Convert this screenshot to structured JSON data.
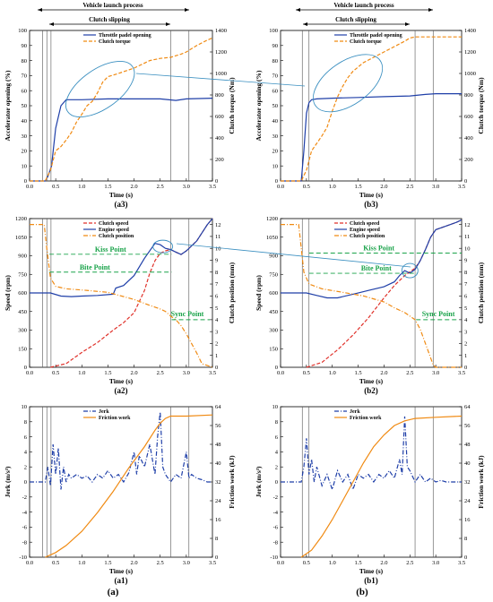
{
  "figure": {
    "panels_left_caption": "(a)",
    "panels_right_caption": "(b)",
    "annotation_launch": "Vehicle launch process",
    "annotation_slip": "Clutch slipping",
    "colors": {
      "blue": "#1f3fa8",
      "orange": "#f08a12",
      "red": "#e0312a",
      "green": "#1aa34a",
      "teal": "#3a8fc0"
    }
  },
  "chart_data": [
    {
      "id": "a3",
      "type": "line",
      "subtitle": "(a3)",
      "xlabel": "Time (s)",
      "ylabel": "Accelerator opening (%)",
      "y2label": "Clutch torque (Nm)",
      "xlim": [
        0,
        3.5
      ],
      "ylim": [
        0,
        100
      ],
      "y2lim": [
        0,
        1400
      ],
      "xticks": [
        "0.0",
        "0.5",
        "1.0",
        "1.5",
        "2.0",
        "2.5",
        "3.0",
        "3.5"
      ],
      "yticks": [
        "0",
        "10",
        "20",
        "30",
        "40",
        "50",
        "60",
        "70",
        "80",
        "90",
        "100"
      ],
      "y2ticks": [
        "0",
        "200",
        "400",
        "600",
        "800",
        "1000",
        "1200",
        "1400"
      ],
      "series": [
        {
          "name": "Throttle padel opening",
          "axis": "y",
          "style": "solid",
          "color": "#1f3fa8",
          "x": [
            0,
            0.3,
            0.35,
            0.42,
            0.5,
            0.6,
            0.7,
            1.0,
            1.5,
            2.0,
            2.5,
            2.8,
            3.0,
            3.5
          ],
          "y": [
            0,
            0,
            3,
            10,
            35,
            50,
            54,
            54,
            54.5,
            54.5,
            54.5,
            53.5,
            54.5,
            55
          ]
        },
        {
          "name": "Clutch torque",
          "axis": "y2",
          "style": "dash",
          "color": "#f08a12",
          "x": [
            0,
            0.3,
            0.4,
            0.5,
            0.6,
            0.7,
            0.8,
            0.9,
            1.0,
            1.1,
            1.2,
            1.3,
            1.4,
            1.5,
            1.7,
            2.0,
            2.3,
            2.5,
            2.7,
            2.9,
            3.0,
            3.2,
            3.4,
            3.5
          ],
          "y": [
            0,
            0,
            100,
            280,
            320,
            380,
            450,
            550,
            620,
            700,
            740,
            820,
            920,
            970,
            1000,
            1050,
            1120,
            1140,
            1150,
            1180,
            1200,
            1260,
            1310,
            1330
          ]
        }
      ]
    },
    {
      "id": "a2",
      "type": "line",
      "subtitle": "(a2)",
      "xlabel": "Time (s)",
      "ylabel": "Speed (rpm)",
      "y2label": "Clutch position (mm)",
      "xlim": [
        0,
        3.5
      ],
      "ylim": [
        0,
        1200
      ],
      "y2lim": [
        0,
        12.5
      ],
      "xticks": [
        "0.0",
        "0.5",
        "1.0",
        "1.5",
        "2.0",
        "2.5",
        "3.0",
        "3.5"
      ],
      "yticks": [
        "0",
        "150",
        "300",
        "450",
        "600",
        "750",
        "900",
        "1050",
        "1200"
      ],
      "y2ticks": [
        "0",
        "1",
        "2",
        "3",
        "4",
        "5",
        "6",
        "7",
        "8",
        "9",
        "10",
        "11",
        "12"
      ],
      "annotations": [
        "Kiss Point",
        "Bite Point",
        "Sync Point"
      ],
      "series": [
        {
          "name": "Clutch speed",
          "axis": "y",
          "style": "dash",
          "color": "#e0312a",
          "x": [
            0.4,
            0.7,
            1.0,
            1.3,
            1.6,
            1.8,
            2.0,
            2.2,
            2.3,
            2.4,
            2.5,
            2.6,
            2.7,
            2.8,
            2.9,
            3.0,
            3.2,
            3.4,
            3.5
          ],
          "y": [
            0,
            30,
            120,
            200,
            300,
            360,
            440,
            620,
            760,
            860,
            920,
            940,
            950,
            930,
            910,
            940,
            1020,
            1150,
            1200
          ]
        },
        {
          "name": "Engine speed",
          "axis": "y",
          "style": "solid",
          "color": "#1f3fa8",
          "x": [
            0,
            0.4,
            0.6,
            0.8,
            1.0,
            1.3,
            1.6,
            1.65,
            1.8,
            2.0,
            2.2,
            2.4,
            2.5,
            2.6,
            2.7,
            2.8,
            2.9,
            3.0,
            3.2,
            3.4,
            3.5
          ],
          "y": [
            600,
            600,
            575,
            570,
            575,
            580,
            590,
            640,
            660,
            740,
            880,
            1000,
            990,
            960,
            950,
            930,
            910,
            940,
            1020,
            1150,
            1200
          ]
        },
        {
          "name": "Clutch position",
          "axis": "y2",
          "style": "dashdot",
          "color": "#f08a12",
          "x": [
            0,
            0.28,
            0.33,
            0.4,
            0.5,
            0.7,
            1.0,
            1.5,
            2.0,
            2.3,
            2.5,
            2.6,
            2.7,
            2.8,
            2.9,
            3.0,
            3.1,
            3.2,
            3.3,
            3.5
          ],
          "y": [
            12,
            12,
            10,
            7.5,
            6.8,
            6.6,
            6.5,
            6.3,
            5.7,
            5.2,
            4.9,
            4.7,
            4.3,
            4.0,
            3.5,
            2.8,
            2.0,
            1.2,
            0.3,
            0
          ]
        }
      ]
    },
    {
      "id": "a1",
      "type": "line",
      "subtitle": "(a1)",
      "xlabel": "Time (s)",
      "ylabel": "Jerk (m/s³)",
      "y2label": "Friction work (kJ)",
      "xlim": [
        0,
        3.5
      ],
      "ylim": [
        -10,
        10
      ],
      "y2lim": [
        0,
        64
      ],
      "xticks": [
        "0.0",
        "0.5",
        "1.0",
        "1.5",
        "2.0",
        "2.5",
        "3.0",
        "3.5"
      ],
      "yticks": [
        "-10",
        "-8",
        "-6",
        "-4",
        "-2",
        "0",
        "2",
        "4",
        "6",
        "8",
        "10"
      ],
      "y2ticks": [
        "0",
        "8",
        "16",
        "24",
        "32",
        "40",
        "48",
        "56",
        "64"
      ],
      "series": [
        {
          "name": "Jerk",
          "axis": "y",
          "style": "dashdot",
          "color": "#1f3fa8",
          "x": [
            0,
            0.3,
            0.35,
            0.4,
            0.45,
            0.5,
            0.55,
            0.6,
            0.65,
            0.7,
            0.75,
            0.8,
            0.9,
            1.0,
            1.1,
            1.2,
            1.3,
            1.4,
            1.5,
            1.6,
            1.7,
            1.8,
            1.9,
            2.0,
            2.05,
            2.1,
            2.2,
            2.3,
            2.4,
            2.45,
            2.5,
            2.55,
            2.6,
            2.7,
            2.8,
            2.9,
            3.0,
            3.05,
            3.1,
            3.2,
            3.3,
            3.4,
            3.5
          ],
          "y": [
            0,
            0,
            2,
            -0.5,
            5,
            1,
            4.5,
            -1,
            2,
            0,
            1,
            0.5,
            1,
            0.5,
            0.8,
            0,
            1,
            0.5,
            1.5,
            0.5,
            1,
            0,
            1.2,
            4,
            1,
            3.5,
            2,
            5,
            1,
            6,
            9.3,
            2,
            1,
            0,
            1,
            0.5,
            4,
            0.5,
            1,
            0.5,
            0.3,
            0,
            0
          ]
        },
        {
          "name": "Friction work",
          "axis": "y2",
          "style": "solid",
          "color": "#f08a12",
          "x": [
            0.3,
            0.5,
            0.7,
            1.0,
            1.3,
            1.6,
            1.9,
            2.2,
            2.4,
            2.5,
            2.6,
            2.7,
            3.0,
            3.5
          ],
          "y": [
            0,
            2,
            5,
            11,
            19,
            28,
            38,
            47,
            54,
            57,
            59,
            60,
            60,
            60.5
          ]
        }
      ]
    },
    {
      "id": "b3",
      "type": "line",
      "subtitle": "(b3)",
      "xlabel": "Time (s)",
      "ylabel": "Accelerator opening (%)",
      "y2label": "Clutch torque (Nm)",
      "xlim": [
        0,
        3.5
      ],
      "ylim": [
        0,
        100
      ],
      "y2lim": [
        0,
        1400
      ],
      "xticks": [
        "0.0",
        "0.5",
        "1.0",
        "1.5",
        "2.0",
        "2.5",
        "3.0",
        "3.5"
      ],
      "yticks": [
        "0",
        "10",
        "20",
        "30",
        "40",
        "50",
        "60",
        "70",
        "80",
        "90",
        "100"
      ],
      "y2ticks": [
        "0",
        "200",
        "400",
        "600",
        "800",
        "1000",
        "1200",
        "1400"
      ],
      "series": [
        {
          "name": "Throttle padel opening",
          "axis": "y",
          "style": "solid",
          "color": "#1f3fa8",
          "x": [
            0,
            0.4,
            0.45,
            0.5,
            0.55,
            0.6,
            0.7,
            1.0,
            1.5,
            2.0,
            2.5,
            2.8,
            3.0,
            3.5
          ],
          "y": [
            0,
            0,
            20,
            45,
            52,
            54,
            54.5,
            55,
            55.5,
            56,
            56.5,
            57.5,
            58,
            58
          ]
        },
        {
          "name": "Clutch torque",
          "axis": "y2",
          "style": "dash",
          "color": "#f08a12",
          "x": [
            0,
            0.4,
            0.5,
            0.6,
            0.7,
            0.8,
            0.9,
            1.0,
            1.1,
            1.2,
            1.3,
            1.4,
            1.6,
            1.8,
            2.0,
            2.2,
            2.4,
            2.5,
            2.6,
            3.0,
            3.5
          ],
          "y": [
            0,
            0,
            100,
            280,
            350,
            420,
            500,
            650,
            780,
            880,
            960,
            1020,
            1100,
            1150,
            1200,
            1250,
            1300,
            1330,
            1340,
            1340,
            1340
          ]
        }
      ]
    },
    {
      "id": "b2",
      "type": "line",
      "subtitle": "(b2)",
      "xlabel": "Time (s)",
      "ylabel": "Speed (rpm)",
      "y2label": "Clutch position (mm)",
      "xlim": [
        0,
        3.5
      ],
      "ylim": [
        0,
        1200
      ],
      "y2lim": [
        0,
        12.5
      ],
      "xticks": [
        "0.0",
        "0.5",
        "1.0",
        "1.5",
        "2.0",
        "2.5",
        "3.0",
        "3.5"
      ],
      "yticks": [
        "0",
        "150",
        "300",
        "450",
        "600",
        "750",
        "900",
        "1050",
        "1200"
      ],
      "y2ticks": [
        "0",
        "1",
        "2",
        "3",
        "4",
        "5",
        "6",
        "7",
        "8",
        "9",
        "10",
        "11",
        "12"
      ],
      "annotations": [
        "Kiss Point",
        "Bite Point",
        "Sync Point"
      ],
      "series": [
        {
          "name": "Clutch speed",
          "axis": "y",
          "style": "dash",
          "color": "#e0312a",
          "x": [
            0.5,
            0.8,
            1.1,
            1.4,
            1.7,
            2.0,
            2.2,
            2.4,
            2.5,
            2.6,
            2.7,
            2.8,
            2.9,
            3.0,
            3.2,
            3.4,
            3.5
          ],
          "y": [
            0,
            40,
            140,
            260,
            400,
            560,
            660,
            740,
            770,
            800,
            860,
            950,
            1050,
            1110,
            1140,
            1170,
            1190
          ]
        },
        {
          "name": "Engine speed",
          "axis": "y",
          "style": "solid",
          "color": "#1f3fa8",
          "x": [
            0,
            0.5,
            0.7,
            0.9,
            1.1,
            1.4,
            1.7,
            2.0,
            2.2,
            2.3,
            2.4,
            2.5,
            2.6,
            2.7,
            2.8,
            2.9,
            3.0,
            3.2,
            3.4,
            3.5
          ],
          "y": [
            600,
            600,
            580,
            560,
            560,
            590,
            620,
            650,
            690,
            740,
            780,
            760,
            790,
            860,
            950,
            1050,
            1110,
            1140,
            1170,
            1190
          ]
        },
        {
          "name": "Clutch position",
          "axis": "y2",
          "style": "dashdot",
          "color": "#f08a12",
          "x": [
            0,
            0.35,
            0.4,
            0.45,
            0.55,
            0.8,
            1.2,
            1.6,
            2.0,
            2.2,
            2.4,
            2.6,
            2.7,
            2.8,
            2.9,
            2.95,
            3.0,
            3.5
          ],
          "y": [
            12,
            12,
            10,
            8,
            7,
            6.6,
            6.3,
            6.0,
            5.5,
            5.0,
            4.6,
            4.0,
            3.2,
            2.0,
            0.8,
            0.2,
            0,
            0
          ]
        }
      ]
    },
    {
      "id": "b1",
      "type": "line",
      "subtitle": "(b1)",
      "xlabel": "Time (s)",
      "ylabel": "Jerk (m/s³)",
      "y2label": "Friction work (kJ)",
      "xlim": [
        0,
        3.5
      ],
      "ylim": [
        -10,
        10
      ],
      "y2lim": [
        0,
        64
      ],
      "xticks": [
        "0.0",
        "0.5",
        "1.0",
        "1.5",
        "2.0",
        "2.5",
        "3.0",
        "3.5"
      ],
      "yticks": [
        "-10",
        "-8",
        "-6",
        "-4",
        "-2",
        "0",
        "2",
        "4",
        "6",
        "8",
        "10"
      ],
      "y2ticks": [
        "0",
        "8",
        "16",
        "24",
        "32",
        "40",
        "48",
        "56",
        "64"
      ],
      "series": [
        {
          "name": "Jerk",
          "axis": "y",
          "style": "dashdot",
          "color": "#1f3fa8",
          "x": [
            0,
            0.4,
            0.45,
            0.5,
            0.55,
            0.6,
            0.65,
            0.7,
            0.8,
            0.9,
            1.0,
            1.1,
            1.2,
            1.3,
            1.4,
            1.5,
            1.6,
            1.7,
            1.8,
            1.9,
            2.0,
            2.1,
            2.2,
            2.3,
            2.35,
            2.4,
            2.45,
            2.5,
            2.6,
            2.7,
            2.8,
            2.9,
            3.0,
            3.1,
            3.2,
            3.5
          ],
          "y": [
            0,
            0,
            2,
            5.8,
            1,
            3,
            0,
            2,
            -0.5,
            1,
            -1,
            1.5,
            0,
            1,
            -1,
            1,
            0.5,
            1,
            0,
            1,
            0.5,
            1.5,
            0.5,
            3,
            1,
            8.7,
            2,
            1.5,
            0,
            1,
            0,
            0.5,
            0,
            0.2,
            0,
            0
          ]
        },
        {
          "name": "Friction work",
          "axis": "y2",
          "style": "solid",
          "color": "#f08a12",
          "x": [
            0.4,
            0.6,
            0.8,
            1.0,
            1.2,
            1.4,
            1.6,
            1.8,
            2.0,
            2.2,
            2.4,
            2.5,
            2.6,
            3.0,
            3.5
          ],
          "y": [
            0,
            3,
            9,
            16,
            24,
            32,
            40,
            47,
            52,
            56,
            58,
            58.5,
            59,
            59.5,
            60
          ]
        }
      ]
    }
  ]
}
